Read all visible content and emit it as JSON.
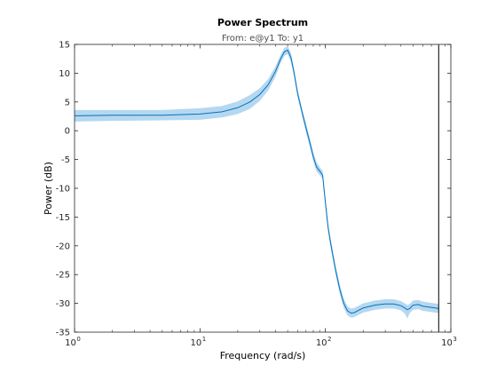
{
  "chart_data": {
    "type": "line",
    "title": "Power Spectrum",
    "subtitle": "From: e@y1  To: y1",
    "xlabel": "Frequency  (rad/s)",
    "ylabel": "Power (dB)",
    "xscale": "log",
    "xlim": [
      1,
      1000
    ],
    "ylim": [
      -35,
      15
    ],
    "yticks": [
      15,
      10,
      5,
      0,
      -5,
      -10,
      -15,
      -20,
      -25,
      -30,
      -35
    ],
    "xticks": [
      {
        "base": "10",
        "exp": "0",
        "value": 1
      },
      {
        "base": "10",
        "exp": "1",
        "value": 10
      },
      {
        "base": "10",
        "exp": "2",
        "value": 100
      },
      {
        "base": "10",
        "exp": "3",
        "value": 1000
      }
    ],
    "grid": false,
    "nyquist_frequency": 800,
    "colors": {
      "line": "#0072bd",
      "band": "#b5d8f0",
      "axis": "#262626",
      "nyquist": "#000000"
    },
    "series": [
      {
        "x": [
          1,
          2,
          5,
          10,
          15,
          20,
          25,
          30,
          35,
          40,
          44,
          47,
          50,
          53,
          56,
          60,
          65,
          70,
          75,
          80,
          85,
          90,
          95,
          100,
          105,
          110,
          120,
          130,
          140,
          150,
          160,
          170,
          180,
          200,
          250,
          300,
          350,
          400,
          430,
          450,
          470,
          500,
          550,
          600,
          700,
          800
        ],
        "y": [
          2.6,
          2.7,
          2.7,
          2.9,
          3.3,
          4.0,
          5.0,
          6.3,
          8.0,
          10.3,
          12.5,
          13.7,
          14.0,
          12.8,
          10.3,
          6.5,
          3.3,
          0.5,
          -2.0,
          -4.5,
          -6.3,
          -7.0,
          -7.7,
          -12.5,
          -16.8,
          -19.5,
          -24.0,
          -27.5,
          -30.0,
          -31.3,
          -31.7,
          -31.6,
          -31.3,
          -30.8,
          -30.3,
          -30.1,
          -30.1,
          -30.4,
          -30.8,
          -31.1,
          -30.9,
          -30.3,
          -30.2,
          -30.5,
          -30.7,
          -30.9
        ],
        "band_upper": [
          3.6,
          3.6,
          3.6,
          3.9,
          4.3,
          5.1,
          6.2,
          7.4,
          9.0,
          11.2,
          13.2,
          14.4,
          14.7,
          13.6,
          11.0,
          7.2,
          4.0,
          1.3,
          -1.2,
          -3.7,
          -5.5,
          -6.3,
          -7.0,
          -11.7,
          -16.0,
          -18.7,
          -23.2,
          -26.7,
          -29.2,
          -30.5,
          -30.9,
          -30.8,
          -30.5,
          -30.0,
          -29.5,
          -29.3,
          -29.3,
          -29.6,
          -30.0,
          -30.3,
          -30.1,
          -29.5,
          -29.4,
          -29.7,
          -29.9,
          -30.1
        ],
        "band_lower": [
          1.6,
          1.7,
          1.8,
          1.9,
          2.3,
          2.9,
          3.8,
          5.2,
          7.0,
          9.4,
          11.8,
          13.0,
          13.3,
          12.0,
          9.6,
          5.8,
          2.6,
          -0.3,
          -2.8,
          -5.3,
          -7.1,
          -7.7,
          -8.4,
          -13.3,
          -17.6,
          -20.3,
          -24.8,
          -28.3,
          -30.8,
          -32.1,
          -32.5,
          -32.4,
          -32.1,
          -31.6,
          -31.1,
          -30.9,
          -30.9,
          -31.2,
          -31.8,
          -32.6,
          -31.7,
          -31.1,
          -31.0,
          -31.3,
          -31.5,
          -31.7
        ]
      }
    ]
  }
}
